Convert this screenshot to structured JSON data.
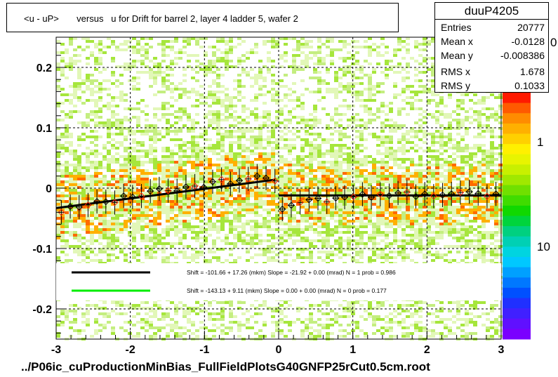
{
  "title": "<u - uP>       versus   u for Drift for barrel 2, layer 4 ladder 5, wafer 2",
  "footer": "../P06ic_cuProductionMinBias_FullFieldPlotsG40GNFP25rCut0.5cm.root",
  "stats": {
    "name": "duuP4205",
    "rows": [
      {
        "label": "Entries",
        "value": "20777"
      },
      {
        "label": "Mean x",
        "value": "-0.0128"
      },
      {
        "label": "Mean y",
        "value": "-0.008386"
      },
      {
        "label": "RMS x",
        "value": "1.678"
      },
      {
        "label": "RMS y",
        "value": "0.1033"
      }
    ]
  },
  "colorbar": {
    "labels": [
      "1",
      "10"
    ],
    "partial_label": "0"
  },
  "legend": {
    "entries": [
      {
        "color": "#000000",
        "text": "Shift =  -101.66 + 17.26 (mkm) Slope =    -21.92 + 0.00 (mrad)  N = 1 prob = 0.986"
      },
      {
        "color": "#00ee00",
        "text": "Shift =  -143.13 + 9.11 (mkm) Slope =     0.00 + 0.00 (mrad)  N = 0 prob = 0.177"
      }
    ]
  },
  "chart_data": {
    "type": "heatmap",
    "xlim": [
      -3,
      3
    ],
    "ylim": [
      -0.25,
      0.25
    ],
    "x_ticks": [
      -3,
      -2,
      -1,
      0,
      1,
      2,
      3
    ],
    "x_tick_labels": [
      "-3",
      "-2",
      "-1",
      "0",
      "1",
      "2",
      "3"
    ],
    "y_ticks": [
      -0.2,
      -0.1,
      0,
      0.1,
      0.2
    ],
    "y_tick_labels": [
      "-0.2",
      "-0.1",
      "0",
      "0.1",
      "0.2"
    ],
    "grid": true,
    "fit_lines": [
      {
        "x": [
          -3,
          -0.05
        ],
        "y": [
          -0.033,
          0.014
        ],
        "color": "#000000"
      },
      {
        "x": [
          0,
          3
        ],
        "y": [
          -0.012,
          -0.012
        ],
        "color": "#000000"
      }
    ],
    "profile_points": {
      "x": [
        -2.93,
        -2.81,
        -2.69,
        -2.57,
        -2.45,
        -2.33,
        -2.21,
        -2.09,
        -1.97,
        -1.85,
        -1.73,
        -1.61,
        -1.49,
        -1.37,
        -1.25,
        -1.13,
        -1.01,
        -0.89,
        -0.77,
        -0.65,
        -0.53,
        -0.41,
        -0.29,
        -0.17,
        -0.05,
        0.05,
        0.17,
        0.29,
        0.41,
        0.53,
        0.65,
        0.77,
        0.89,
        1.01,
        1.13,
        1.25,
        1.37,
        1.49,
        1.61,
        1.73,
        1.85,
        1.97,
        2.09,
        2.21,
        2.33,
        2.45,
        2.57,
        2.69,
        2.81,
        2.93
      ],
      "y": [
        -0.036,
        -0.031,
        -0.028,
        -0.025,
        -0.024,
        -0.02,
        -0.019,
        -0.016,
        -0.013,
        -0.011,
        -0.009,
        -0.006,
        -0.003,
        0.0,
        0.001,
        0.004,
        0.006,
        0.008,
        0.01,
        0.012,
        0.013,
        0.016,
        0.016,
        0.015,
        0.012,
        -0.03,
        -0.028,
        -0.024,
        -0.022,
        -0.02,
        -0.018,
        -0.017,
        -0.015,
        -0.014,
        -0.013,
        -0.013,
        -0.012,
        -0.011,
        -0.012,
        -0.01,
        -0.011,
        -0.01,
        -0.009,
        -0.011,
        -0.01,
        -0.009,
        -0.01,
        -0.011,
        -0.01,
        -0.01
      ],
      "yerr": [
        0.02,
        0.02,
        0.02,
        0.02,
        0.02,
        0.02,
        0.02,
        0.02,
        0.02,
        0.02,
        0.02,
        0.02,
        0.02,
        0.02,
        0.02,
        0.02,
        0.02,
        0.02,
        0.02,
        0.02,
        0.02,
        0.02,
        0.02,
        0.02,
        0.02,
        0.02,
        0.02,
        0.02,
        0.02,
        0.02,
        0.02,
        0.02,
        0.02,
        0.02,
        0.02,
        0.02,
        0.02,
        0.02,
        0.02,
        0.02,
        0.02,
        0.02,
        0.02,
        0.02,
        0.02,
        0.02,
        0.02,
        0.02,
        0.02,
        0.02
      ]
    },
    "colors": {
      "low": "#c8f08c",
      "mid": "#a8e640",
      "high": "#ffc400",
      "peak": "#ff5a00",
      "grid": "#000000"
    }
  }
}
